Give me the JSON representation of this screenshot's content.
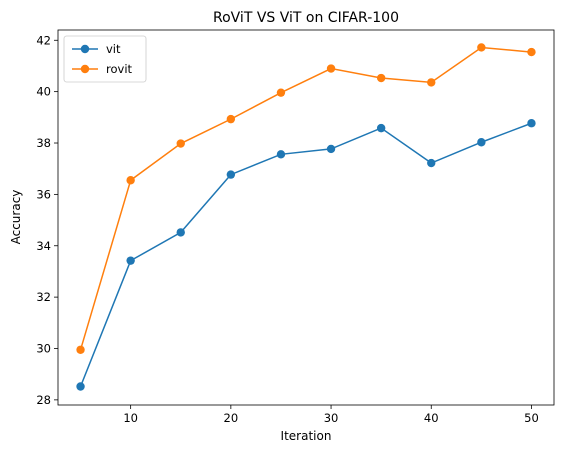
{
  "chart_data": {
    "type": "line",
    "title": "RoViT VS ViT on CIFAR-100",
    "xlabel": "Iteration",
    "ylabel": "Accuracy",
    "x": [
      5,
      10,
      15,
      20,
      25,
      30,
      35,
      40,
      45,
      50
    ],
    "xlim": [
      2.75,
      52.25
    ],
    "ylim": [
      27.8,
      42.4
    ],
    "xticks": [
      10,
      20,
      30,
      40,
      50
    ],
    "yticks": [
      28,
      30,
      32,
      34,
      36,
      38,
      40,
      42
    ],
    "grid": false,
    "legend_position": "top-left",
    "series": [
      {
        "name": "vit",
        "color": "#1f77b4",
        "marker": "circle",
        "values": [
          28.52,
          33.42,
          34.52,
          36.77,
          37.56,
          37.77,
          38.58,
          37.22,
          38.03,
          38.77
        ]
      },
      {
        "name": "rovit",
        "color": "#ff7f0e",
        "marker": "circle",
        "values": [
          29.95,
          36.55,
          37.98,
          38.93,
          39.96,
          40.9,
          40.53,
          40.36,
          41.72,
          41.54
        ]
      }
    ]
  }
}
